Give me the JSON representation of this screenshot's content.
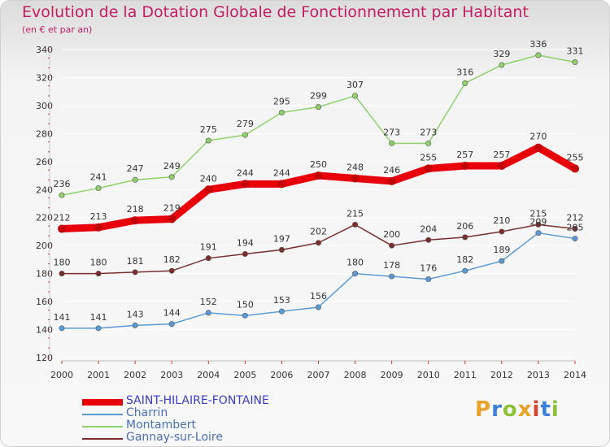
{
  "title": "Evolution de la Dotation Globale de Fonctionnement par Habitant",
  "subtitle": "(en € et par an)",
  "logo": {
    "letters": [
      "P",
      "r",
      "o",
      "x",
      "i",
      "t",
      "i"
    ],
    "colors": [
      "#e8a22a",
      "#3b7fd6",
      "#8fc23a",
      "#e8a22a",
      "#d9442e",
      "#3b7fd6",
      "#8fc23a"
    ]
  },
  "chart_data": {
    "type": "line",
    "title": "Evolution de la Dotation Globale de Fonctionnement par Habitant",
    "subtitle": "(en € et par an)",
    "x": [
      "2000",
      "2001",
      "2002",
      "2003",
      "2004",
      "2005",
      "2006",
      "2007",
      "2008",
      "2009",
      "2010",
      "2011",
      "2012",
      "2013",
      "2014"
    ],
    "ylim": [
      120,
      340
    ],
    "yticks": [
      120,
      140,
      160,
      180,
      200,
      220,
      240,
      260,
      280,
      300,
      320,
      340
    ],
    "series": [
      {
        "name": "SAINT-HILAIRE-FONTAINE",
        "color": "#e8000b",
        "values": [
          212,
          213,
          218,
          219,
          240,
          244,
          244,
          250,
          248,
          246,
          255,
          257,
          257,
          270,
          255
        ]
      },
      {
        "name": "Charrin",
        "color": "#5b9bd5",
        "values": [
          141,
          141,
          143,
          144,
          152,
          150,
          153,
          156,
          180,
          178,
          176,
          182,
          189,
          209,
          205
        ]
      },
      {
        "name": "Montambert",
        "color": "#8fd16a",
        "values": [
          236,
          241,
          247,
          249,
          275,
          279,
          295,
          299,
          307,
          273,
          273,
          316,
          329,
          336,
          331
        ]
      },
      {
        "name": "Gannay-sur-Loire",
        "color": "#7a2e2e",
        "values": [
          180,
          180,
          181,
          182,
          191,
          194,
          197,
          202,
          215,
          200,
          204,
          206,
          210,
          215,
          212
        ]
      }
    ]
  }
}
